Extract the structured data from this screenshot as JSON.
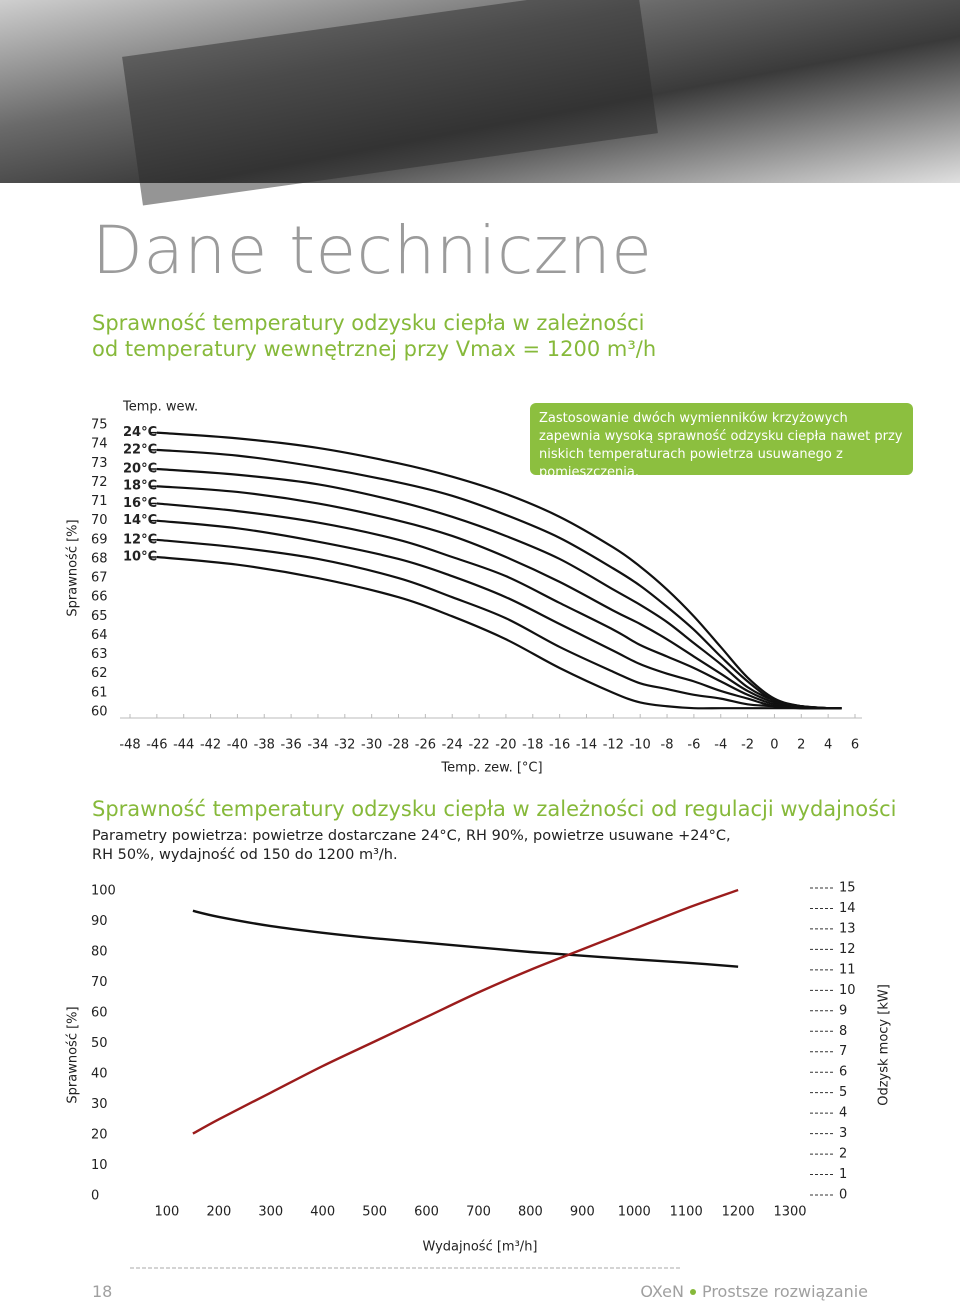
{
  "header": {
    "title": "Dane techniczne",
    "subtitle": [
      "Sprawność temperatury odzysku ciepła w zależności",
      "od temperatury wewnętrznej przy Vmax = 1200 m³/h"
    ]
  },
  "chart_data": [
    {
      "type": "line",
      "legend_title": "Temp. wew.",
      "annotation": "Zastosowanie dwóch wymienników krzyżowych zapewnia wysoką sprawność odzysku ciepła nawet przy niskich temperaturach powietrza usuwanego z pomieszczenia.",
      "y_label": "Sprawność [%]",
      "x_label": "Temp. zew. [°C]",
      "x": [
        -46,
        -40,
        -34,
        -28,
        -24,
        -20,
        -16,
        -12,
        -10,
        -8,
        -6,
        -4,
        -2,
        0,
        2,
        4,
        5
      ],
      "series": [
        {
          "name": "24°C",
          "color": "#111111",
          "values": [
            74.6,
            74.3,
            73.8,
            73.0,
            72.3,
            71.4,
            70.2,
            68.6,
            67.6,
            66.4,
            65.0,
            63.4,
            61.8,
            60.7,
            60.3,
            60.2,
            60.2
          ]
        },
        {
          "name": "22°C",
          "color": "#111111",
          "values": [
            73.7,
            73.4,
            72.8,
            72.0,
            71.3,
            70.3,
            69.1,
            67.5,
            66.6,
            65.5,
            64.3,
            62.9,
            61.6,
            60.6,
            60.3,
            60.2,
            60.2
          ]
        },
        {
          "name": "20°C",
          "color": "#111111",
          "values": [
            72.7,
            72.4,
            71.9,
            71.0,
            70.2,
            69.2,
            68.0,
            66.4,
            65.6,
            64.7,
            63.6,
            62.5,
            61.3,
            60.6,
            60.3,
            60.2,
            60.2
          ]
        },
        {
          "name": "18°C",
          "color": "#111111",
          "values": [
            71.8,
            71.5,
            70.9,
            70.0,
            69.2,
            68.1,
            66.8,
            65.3,
            64.6,
            63.8,
            62.9,
            62.0,
            61.1,
            60.5,
            60.3,
            60.2,
            60.2
          ]
        },
        {
          "name": "16°C",
          "color": "#111111",
          "values": [
            70.9,
            70.5,
            69.9,
            69.0,
            68.1,
            67.1,
            65.7,
            64.3,
            63.5,
            62.9,
            62.3,
            61.6,
            60.9,
            60.4,
            60.2,
            60.2,
            60.2
          ]
        },
        {
          "name": "14°C",
          "color": "#111111",
          "values": [
            70.0,
            69.6,
            68.9,
            68.0,
            67.1,
            66.0,
            64.6,
            63.2,
            62.5,
            62.0,
            61.6,
            61.1,
            60.7,
            60.3,
            60.2,
            60.2,
            60.2
          ]
        },
        {
          "name": "12°C",
          "color": "#111111",
          "values": [
            69.0,
            68.6,
            68.0,
            67.0,
            66.0,
            64.9,
            63.4,
            62.1,
            61.5,
            61.2,
            60.9,
            60.7,
            60.4,
            60.3,
            60.2,
            60.2,
            60.2
          ]
        },
        {
          "name": "10°C",
          "color": "#111111",
          "values": [
            68.1,
            67.7,
            67.0,
            66.0,
            65.0,
            63.8,
            62.3,
            61.0,
            60.5,
            60.3,
            60.2,
            60.2,
            60.2,
            60.2,
            60.2,
            60.2,
            60.2
          ]
        }
      ],
      "xlim": [
        -48,
        6
      ],
      "ylim": [
        60,
        75
      ],
      "xticks": [
        -48,
        -46,
        -44,
        -42,
        -40,
        -38,
        -36,
        -34,
        -32,
        -30,
        -28,
        -26,
        -24,
        -22,
        -20,
        -18,
        -16,
        -14,
        -12,
        -10,
        -8,
        -6,
        -4,
        -2,
        0,
        2,
        4,
        6
      ],
      "yticks": [
        60,
        61,
        62,
        63,
        64,
        65,
        66,
        67,
        68,
        69,
        70,
        71,
        72,
        73,
        74,
        75
      ]
    },
    {
      "type": "line",
      "title": "Sprawność temperatury odzysku ciepła w zależności od regulacji wydajności",
      "subtitle": "Parametry powietrza: powietrze dostarczane 24°C, RH 90%, powietrze usuwane +24°C, RH 50%, wydajność od 150 do 1200 m³/h.",
      "x_label": "Wydajność [m³/h]",
      "y_label": "Sprawność [%]",
      "y2_label": "Odzysk mocy [kW]",
      "x": [
        150,
        200,
        300,
        400,
        500,
        600,
        700,
        800,
        900,
        1000,
        1100,
        1200
      ],
      "series": [
        {
          "color": "#111111",
          "values": [
            93.5,
            91.5,
            88.5,
            86.3,
            84.5,
            83.0,
            81.5,
            80.0,
            78.8,
            77.6,
            76.5,
            75.2
          ]
        },
        {
          "color": "#9b1c1c",
          "axis": "y2",
          "values": [
            3.0,
            3.7,
            5.0,
            6.3,
            7.5,
            8.7,
            9.9,
            11.0,
            12.0,
            13.0,
            14.0,
            14.9
          ]
        }
      ],
      "xlim": [
        0,
        1350
      ],
      "ylim": [
        0,
        100
      ],
      "y2lim": [
        0,
        15
      ],
      "xticks": [
        100,
        200,
        300,
        400,
        500,
        600,
        700,
        800,
        900,
        1000,
        1100,
        1200,
        1300
      ],
      "yticks": [
        0,
        10,
        20,
        30,
        40,
        50,
        60,
        70,
        80,
        90,
        100
      ],
      "y2ticks": [
        0,
        1,
        2,
        3,
        4,
        5,
        6,
        7,
        8,
        9,
        10,
        11,
        12,
        13,
        14,
        15
      ]
    }
  ],
  "footer": {
    "page": "18",
    "brand": "OXeN",
    "tagline": "Prostsze rozwiązanie"
  }
}
